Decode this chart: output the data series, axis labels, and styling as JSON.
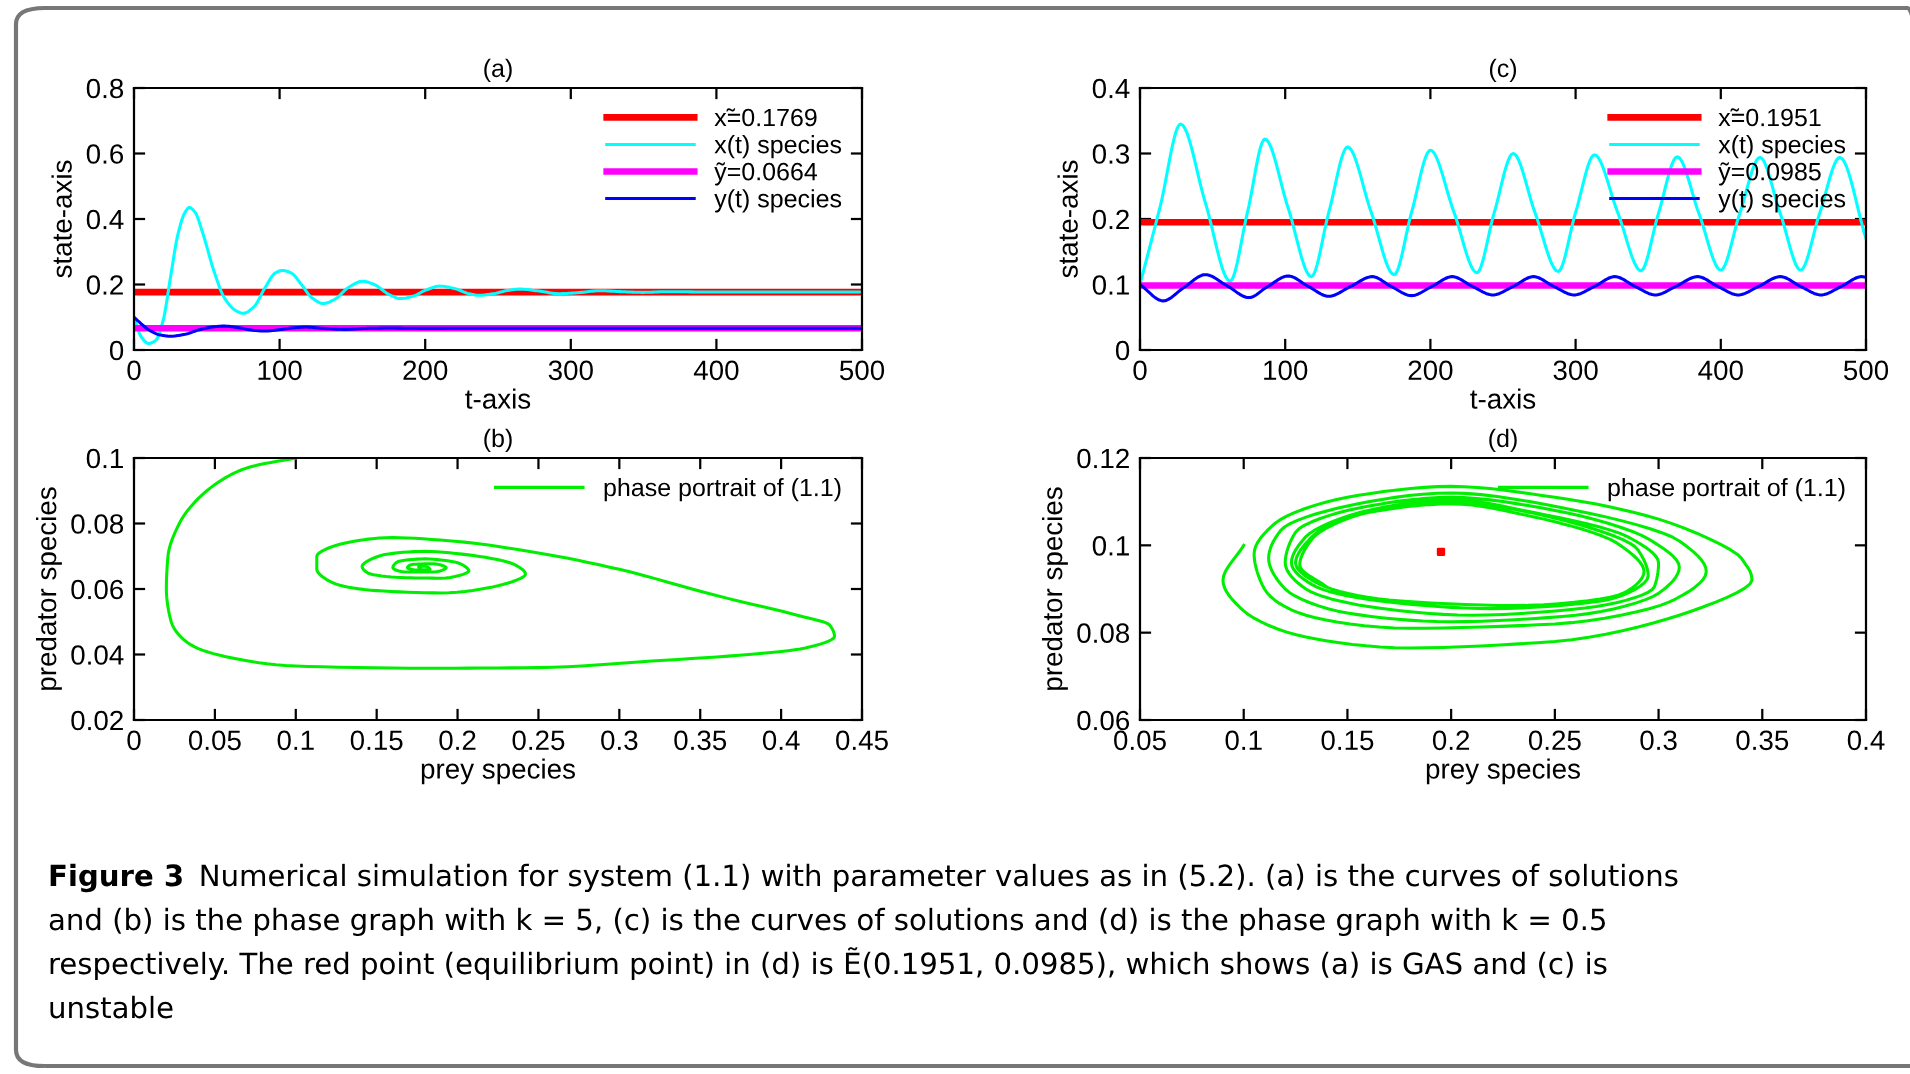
{
  "chart_data": [
    {
      "type": "line",
      "title": "(a)",
      "xlabel": "t-axis",
      "ylabel": "state-axis",
      "xlim": [
        0,
        500
      ],
      "ylim": [
        0,
        0.8
      ],
      "xticks": [
        0,
        100,
        200,
        300,
        400,
        500
      ],
      "yticks": [
        0,
        0.2,
        0.4,
        0.6,
        0.8
      ],
      "legend": "top right",
      "series": [
        {
          "name": "x̃=0.1769",
          "color": "#ff0000",
          "x": [
            0,
            500
          ],
          "values": [
            0.1769,
            0.1769
          ]
        },
        {
          "name": "x(t) species",
          "color": "#00ffff",
          "x": [
            0,
            5,
            10,
            15,
            20,
            25,
            30,
            35,
            38,
            42,
            47,
            55,
            62,
            70,
            75,
            82,
            90,
            97,
            102,
            108,
            115,
            122,
            130,
            138,
            147,
            157,
            165,
            175,
            183,
            192,
            200,
            210,
            220,
            230,
            237,
            247,
            257,
            265,
            278,
            292,
            305,
            320,
            335,
            350,
            365,
            400,
            450,
            500
          ],
          "values": [
            0.1,
            0.04,
            0.02,
            0.03,
            0.09,
            0.22,
            0.35,
            0.42,
            0.435,
            0.42,
            0.36,
            0.24,
            0.16,
            0.12,
            0.112,
            0.13,
            0.19,
            0.235,
            0.243,
            0.235,
            0.2,
            0.16,
            0.142,
            0.155,
            0.19,
            0.21,
            0.2,
            0.17,
            0.157,
            0.165,
            0.182,
            0.195,
            0.188,
            0.172,
            0.167,
            0.172,
            0.182,
            0.186,
            0.18,
            0.172,
            0.175,
            0.181,
            0.178,
            0.176,
            0.178,
            0.177,
            0.177,
            0.177
          ]
        },
        {
          "name": "ỹ=0.0664",
          "color": "#ff00ff",
          "x": [
            0,
            500
          ],
          "values": [
            0.0664,
            0.0664
          ]
        },
        {
          "name": "y(t) species",
          "color": "#0000ff",
          "x": [
            0,
            5,
            10,
            18,
            25,
            35,
            45,
            55,
            62,
            72,
            82,
            90,
            100,
            110,
            118,
            130,
            145,
            160,
            175,
            200,
            250,
            300,
            400,
            500
          ],
          "values": [
            0.1,
            0.08,
            0.062,
            0.046,
            0.042,
            0.048,
            0.062,
            0.071,
            0.073,
            0.068,
            0.06,
            0.058,
            0.062,
            0.068,
            0.07,
            0.066,
            0.063,
            0.066,
            0.067,
            0.066,
            0.0665,
            0.0664,
            0.0664,
            0.0664
          ]
        }
      ]
    },
    {
      "type": "line",
      "title": "(c)",
      "xlabel": "t-axis",
      "ylabel": "state-axis",
      "xlim": [
        0,
        500
      ],
      "ylim": [
        0,
        0.4
      ],
      "xticks": [
        0,
        100,
        200,
        300,
        400,
        500
      ],
      "yticks": [
        0,
        0.1,
        0.2,
        0.3,
        0.4
      ],
      "legend": "top right",
      "series": [
        {
          "name": "x̃=0.1951",
          "color": "#ff0000",
          "x": [
            0,
            500
          ],
          "values": [
            0.1951,
            0.1951
          ]
        },
        {
          "name": "x(t) species",
          "color": "#00ffff",
          "x": [
            0,
            14,
            28,
            45,
            62,
            74,
            86,
            102,
            118,
            130,
            143,
            159,
            175,
            187,
            200,
            216,
            232,
            244,
            257,
            272,
            288,
            300,
            313,
            329,
            345,
            357,
            370,
            385,
            400,
            413,
            427,
            441,
            455,
            468,
            482,
            500
          ],
          "values": [
            0.1,
            0.22,
            0.345,
            0.225,
            0.105,
            0.21,
            0.322,
            0.217,
            0.112,
            0.21,
            0.31,
            0.212,
            0.115,
            0.21,
            0.305,
            0.212,
            0.118,
            0.21,
            0.3,
            0.21,
            0.12,
            0.21,
            0.298,
            0.21,
            0.121,
            0.208,
            0.295,
            0.208,
            0.122,
            0.208,
            0.294,
            0.208,
            0.122,
            0.208,
            0.294,
            0.17
          ]
        },
        {
          "name": "ỹ=0.0985",
          "color": "#ff00ff",
          "x": [
            0,
            500
          ],
          "values": [
            0.0985,
            0.0985
          ]
        },
        {
          "name": "y(t) species",
          "color": "#0000ff",
          "x": [
            0,
            16,
            30,
            45,
            60,
            75,
            88,
            102,
            116,
            130,
            145,
            160,
            173,
            187,
            201,
            215,
            229,
            243,
            257,
            271,
            285,
            299,
            313,
            327,
            341,
            355,
            369,
            384,
            398,
            412,
            426,
            441,
            455,
            469,
            483,
            497,
            500
          ],
          "values": [
            0.1,
            0.075,
            0.095,
            0.115,
            0.098,
            0.08,
            0.097,
            0.113,
            0.097,
            0.082,
            0.097,
            0.112,
            0.097,
            0.083,
            0.097,
            0.112,
            0.097,
            0.084,
            0.097,
            0.112,
            0.097,
            0.084,
            0.097,
            0.112,
            0.097,
            0.084,
            0.097,
            0.112,
            0.097,
            0.084,
            0.097,
            0.112,
            0.097,
            0.084,
            0.097,
            0.112,
            0.111
          ]
        }
      ]
    },
    {
      "type": "line",
      "title": "(b)",
      "xlabel": "prey species",
      "ylabel": "predator species",
      "xlim": [
        0,
        0.45
      ],
      "ylim": [
        0.02,
        0.1
      ],
      "xticks": [
        0,
        0.05,
        0.1,
        0.15,
        0.2,
        0.25,
        0.3,
        0.35,
        0.4,
        0.45
      ],
      "yticks": [
        0.02,
        0.04,
        0.06,
        0.08,
        0.1
      ],
      "legend": "top right",
      "series": [
        {
          "name": "phase portrait of (1.1)",
          "color": "#00ee00",
          "x": [
            0.1,
            0.07,
            0.045,
            0.028,
            0.021,
            0.02,
            0.023,
            0.035,
            0.06,
            0.1,
            0.18,
            0.25,
            0.32,
            0.38,
            0.415,
            0.433,
            0.43,
            0.41,
            0.36,
            0.3,
            0.25,
            0.2,
            0.16,
            0.13,
            0.113,
            0.113,
            0.125,
            0.15,
            0.19,
            0.225,
            0.242,
            0.235,
            0.21,
            0.18,
            0.155,
            0.141,
            0.145,
            0.165,
            0.19,
            0.207,
            0.2,
            0.18,
            0.163,
            0.16,
            0.168,
            0.185,
            0.193,
            0.185,
            0.172,
            0.169,
            0.175,
            0.183,
            0.18,
            0.176,
            0.177
          ],
          "values": [
            0.1,
            0.097,
            0.09,
            0.08,
            0.07,
            0.06,
            0.05,
            0.043,
            0.039,
            0.0365,
            0.0358,
            0.036,
            0.038,
            0.04,
            0.042,
            0.0455,
            0.049,
            0.052,
            0.058,
            0.066,
            0.071,
            0.0745,
            0.0757,
            0.074,
            0.07,
            0.066,
            0.0615,
            0.0595,
            0.0588,
            0.061,
            0.0645,
            0.0675,
            0.0702,
            0.0715,
            0.0705,
            0.067,
            0.0648,
            0.0635,
            0.0633,
            0.0655,
            0.068,
            0.0692,
            0.0683,
            0.0665,
            0.0652,
            0.0652,
            0.0665,
            0.0677,
            0.0675,
            0.0665,
            0.0658,
            0.066,
            0.067,
            0.0667,
            0.0664
          ]
        }
      ]
    },
    {
      "type": "line",
      "title": "(d)",
      "xlabel": "prey species",
      "ylabel": "predator species",
      "xlim": [
        0.05,
        0.4
      ],
      "ylim": [
        0.06,
        0.12
      ],
      "xticks": [
        0.05,
        0.1,
        0.15,
        0.2,
        0.25,
        0.3,
        0.35,
        0.4
      ],
      "yticks": [
        0.06,
        0.08,
        0.1,
        0.12
      ],
      "legend": "top right",
      "annotations": [
        "Figure 3",
        "Numerical simulation for system (1.1) with parameter values as in (5.2). (a) is the curves of solutions\nand (b) is the phase graph with k = 5, (c) is the curves of solutions and (d) is the phase graph with k = 0.5\nrespectively. The red point (equilibrium point) in (d) is Ẽ(0.1951, 0.0985), which shows (a) is GAS and (c) is\nunstable"
      ],
      "series": [
        {
          "name": "phase portrait of (1.1)",
          "color": "#00ee00",
          "x": [
            0.1,
            0.09,
            0.1,
            0.13,
            0.18,
            0.25,
            0.31,
            0.345,
            0.34,
            0.3,
            0.25,
            0.2,
            0.15,
            0.115,
            0.105,
            0.11,
            0.13,
            0.18,
            0.25,
            0.305,
            0.323,
            0.31,
            0.26,
            0.2,
            0.15,
            0.118,
            0.112,
            0.12,
            0.15,
            0.2,
            0.26,
            0.3,
            0.31,
            0.295,
            0.25,
            0.2,
            0.155,
            0.125,
            0.12,
            0.13,
            0.16,
            0.21,
            0.27,
            0.298,
            0.3,
            0.285,
            0.24,
            0.2,
            0.16,
            0.13,
            0.123,
            0.135,
            0.17,
            0.22,
            0.275,
            0.295,
            0.29,
            0.26,
            0.2,
            0.16,
            0.133,
            0.125,
            0.137,
            0.17,
            0.23,
            0.28,
            0.293,
            0.28,
            0.24,
            0.2,
            0.16,
            0.133,
            0.127,
            0.14
          ],
          "values": [
            0.1,
            0.092,
            0.085,
            0.079,
            0.0765,
            0.078,
            0.084,
            0.092,
            0.097,
            0.106,
            0.111,
            0.1135,
            0.111,
            0.105,
            0.098,
            0.09,
            0.084,
            0.081,
            0.082,
            0.087,
            0.094,
            0.101,
            0.108,
            0.112,
            0.109,
            0.1035,
            0.097,
            0.09,
            0.0845,
            0.0825,
            0.084,
            0.089,
            0.095,
            0.1015,
            0.108,
            0.111,
            0.1085,
            0.103,
            0.096,
            0.09,
            0.086,
            0.084,
            0.086,
            0.0905,
            0.096,
            0.102,
            0.1075,
            0.1105,
            0.108,
            0.102,
            0.096,
            0.0905,
            0.087,
            0.0855,
            0.0875,
            0.093,
            0.099,
            0.105,
            0.11,
            0.108,
            0.102,
            0.096,
            0.091,
            0.0875,
            0.0862,
            0.0885,
            0.094,
            0.1005,
            0.1065,
            0.1095,
            0.1075,
            0.1015,
            0.0955,
            0.0905
          ]
        },
        {
          "type": "scatter",
          "color": "#ff0000",
          "marker": "square",
          "x": [
            0.1951
          ],
          "values": [
            0.0985
          ]
        }
      ]
    }
  ]
}
